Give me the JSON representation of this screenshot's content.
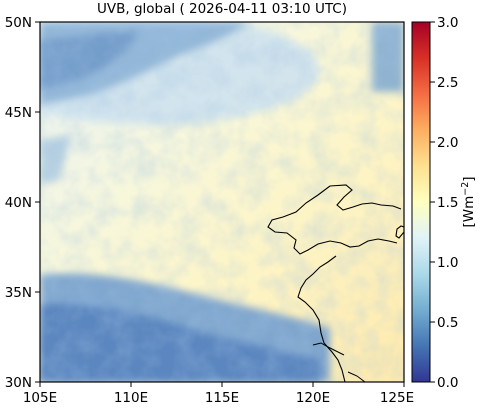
{
  "title": "UVB, global ( 2026-04-11 03:10 UTC)",
  "map": {
    "lat_ticks": [
      "50N",
      "45N",
      "40N",
      "35N",
      "30N"
    ],
    "lon_ticks": [
      "105E",
      "110E",
      "115E",
      "120E",
      "125E"
    ],
    "lat_range": [
      30,
      50
    ],
    "lon_range": [
      105,
      125
    ]
  },
  "colorbar": {
    "label_prefix": "[Wm",
    "label_sup": "−2",
    "label_suffix": "]",
    "ticks": [
      "0.0",
      "0.5",
      "1.0",
      "1.5",
      "2.0",
      "2.5",
      "3.0"
    ],
    "range": [
      0,
      3
    ]
  },
  "colors": {
    "low": "#2c3d95",
    "mid": "#e9f4f6",
    "high": "#a50d26"
  }
}
